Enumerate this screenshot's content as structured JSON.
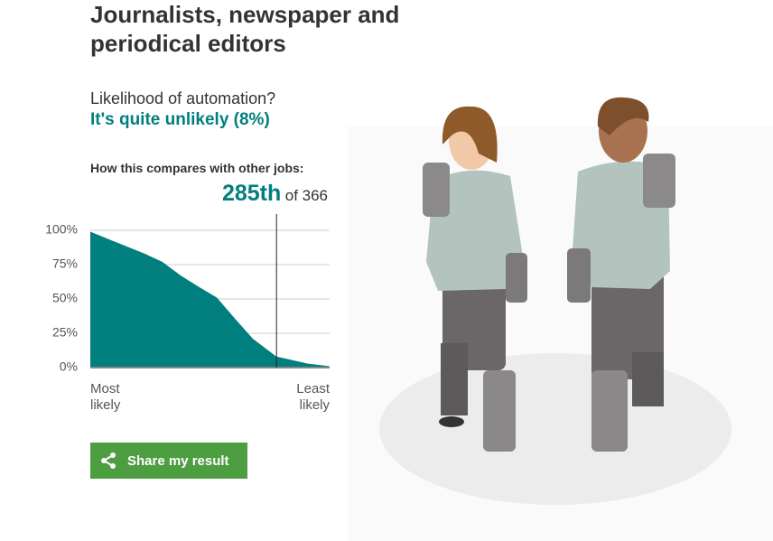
{
  "header": {
    "title": "Journalists, newspaper and periodical editors"
  },
  "result": {
    "question": "Likelihood of automation?",
    "answer": "It's quite unlikely (8%)"
  },
  "comparison": {
    "label": "How this compares with other jobs:",
    "rank": {
      "value": 285,
      "label": "285th"
    },
    "total": {
      "value": 366,
      "label": "of 366"
    }
  },
  "chart_data": {
    "type": "area",
    "color": "#007f7e",
    "x": [
      1,
      42,
      84,
      111,
      139,
      166,
      194,
      221,
      249,
      285,
      304,
      332,
      366
    ],
    "values": [
      99,
      91,
      83,
      77,
      67,
      59,
      51,
      36,
      21,
      8,
      6,
      3,
      1
    ],
    "xlim": [
      1,
      366
    ],
    "ylim": [
      0,
      100
    ],
    "yticks": [
      {
        "value": 0,
        "label": "0%"
      },
      {
        "value": 25,
        "label": "25%"
      },
      {
        "value": 50,
        "label": "50%"
      },
      {
        "value": 75,
        "label": "75%"
      },
      {
        "value": 100,
        "label": "100%"
      }
    ],
    "grid": true,
    "xlabel_left": "Most likely",
    "xlabel_right": "Least likely"
  },
  "share_button": {
    "label": "Share my result"
  }
}
